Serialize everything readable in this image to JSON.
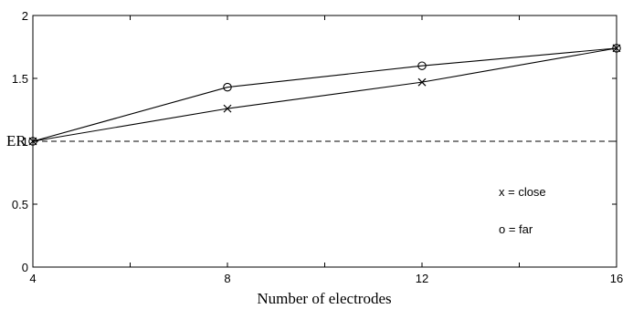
{
  "chart_data": {
    "type": "line",
    "x": [
      4,
      8,
      12,
      16
    ],
    "series": [
      {
        "name": "close",
        "marker": "x",
        "values": [
          1.0,
          1.26,
          1.47,
          1.74
        ]
      },
      {
        "name": "far",
        "marker": "o",
        "values": [
          1.0,
          1.43,
          1.6,
          1.74
        ]
      }
    ],
    "reference_line": {
      "y": 1,
      "style": "dashed"
    },
    "title": "",
    "xlabel": "Number of electrodes",
    "ylabel": "ER",
    "xlim": [
      4,
      16
    ],
    "ylim": [
      0,
      2
    ],
    "xticks": [
      "4",
      "8",
      "12",
      "16"
    ],
    "yticks": [
      "0",
      "0.5",
      "1",
      "1.5",
      "2"
    ],
    "grid": false,
    "legend": {
      "placement": "right",
      "entries": [
        "x = close",
        "o = far"
      ]
    },
    "colors": {
      "line": "#000000",
      "background": "#ffffff"
    }
  }
}
